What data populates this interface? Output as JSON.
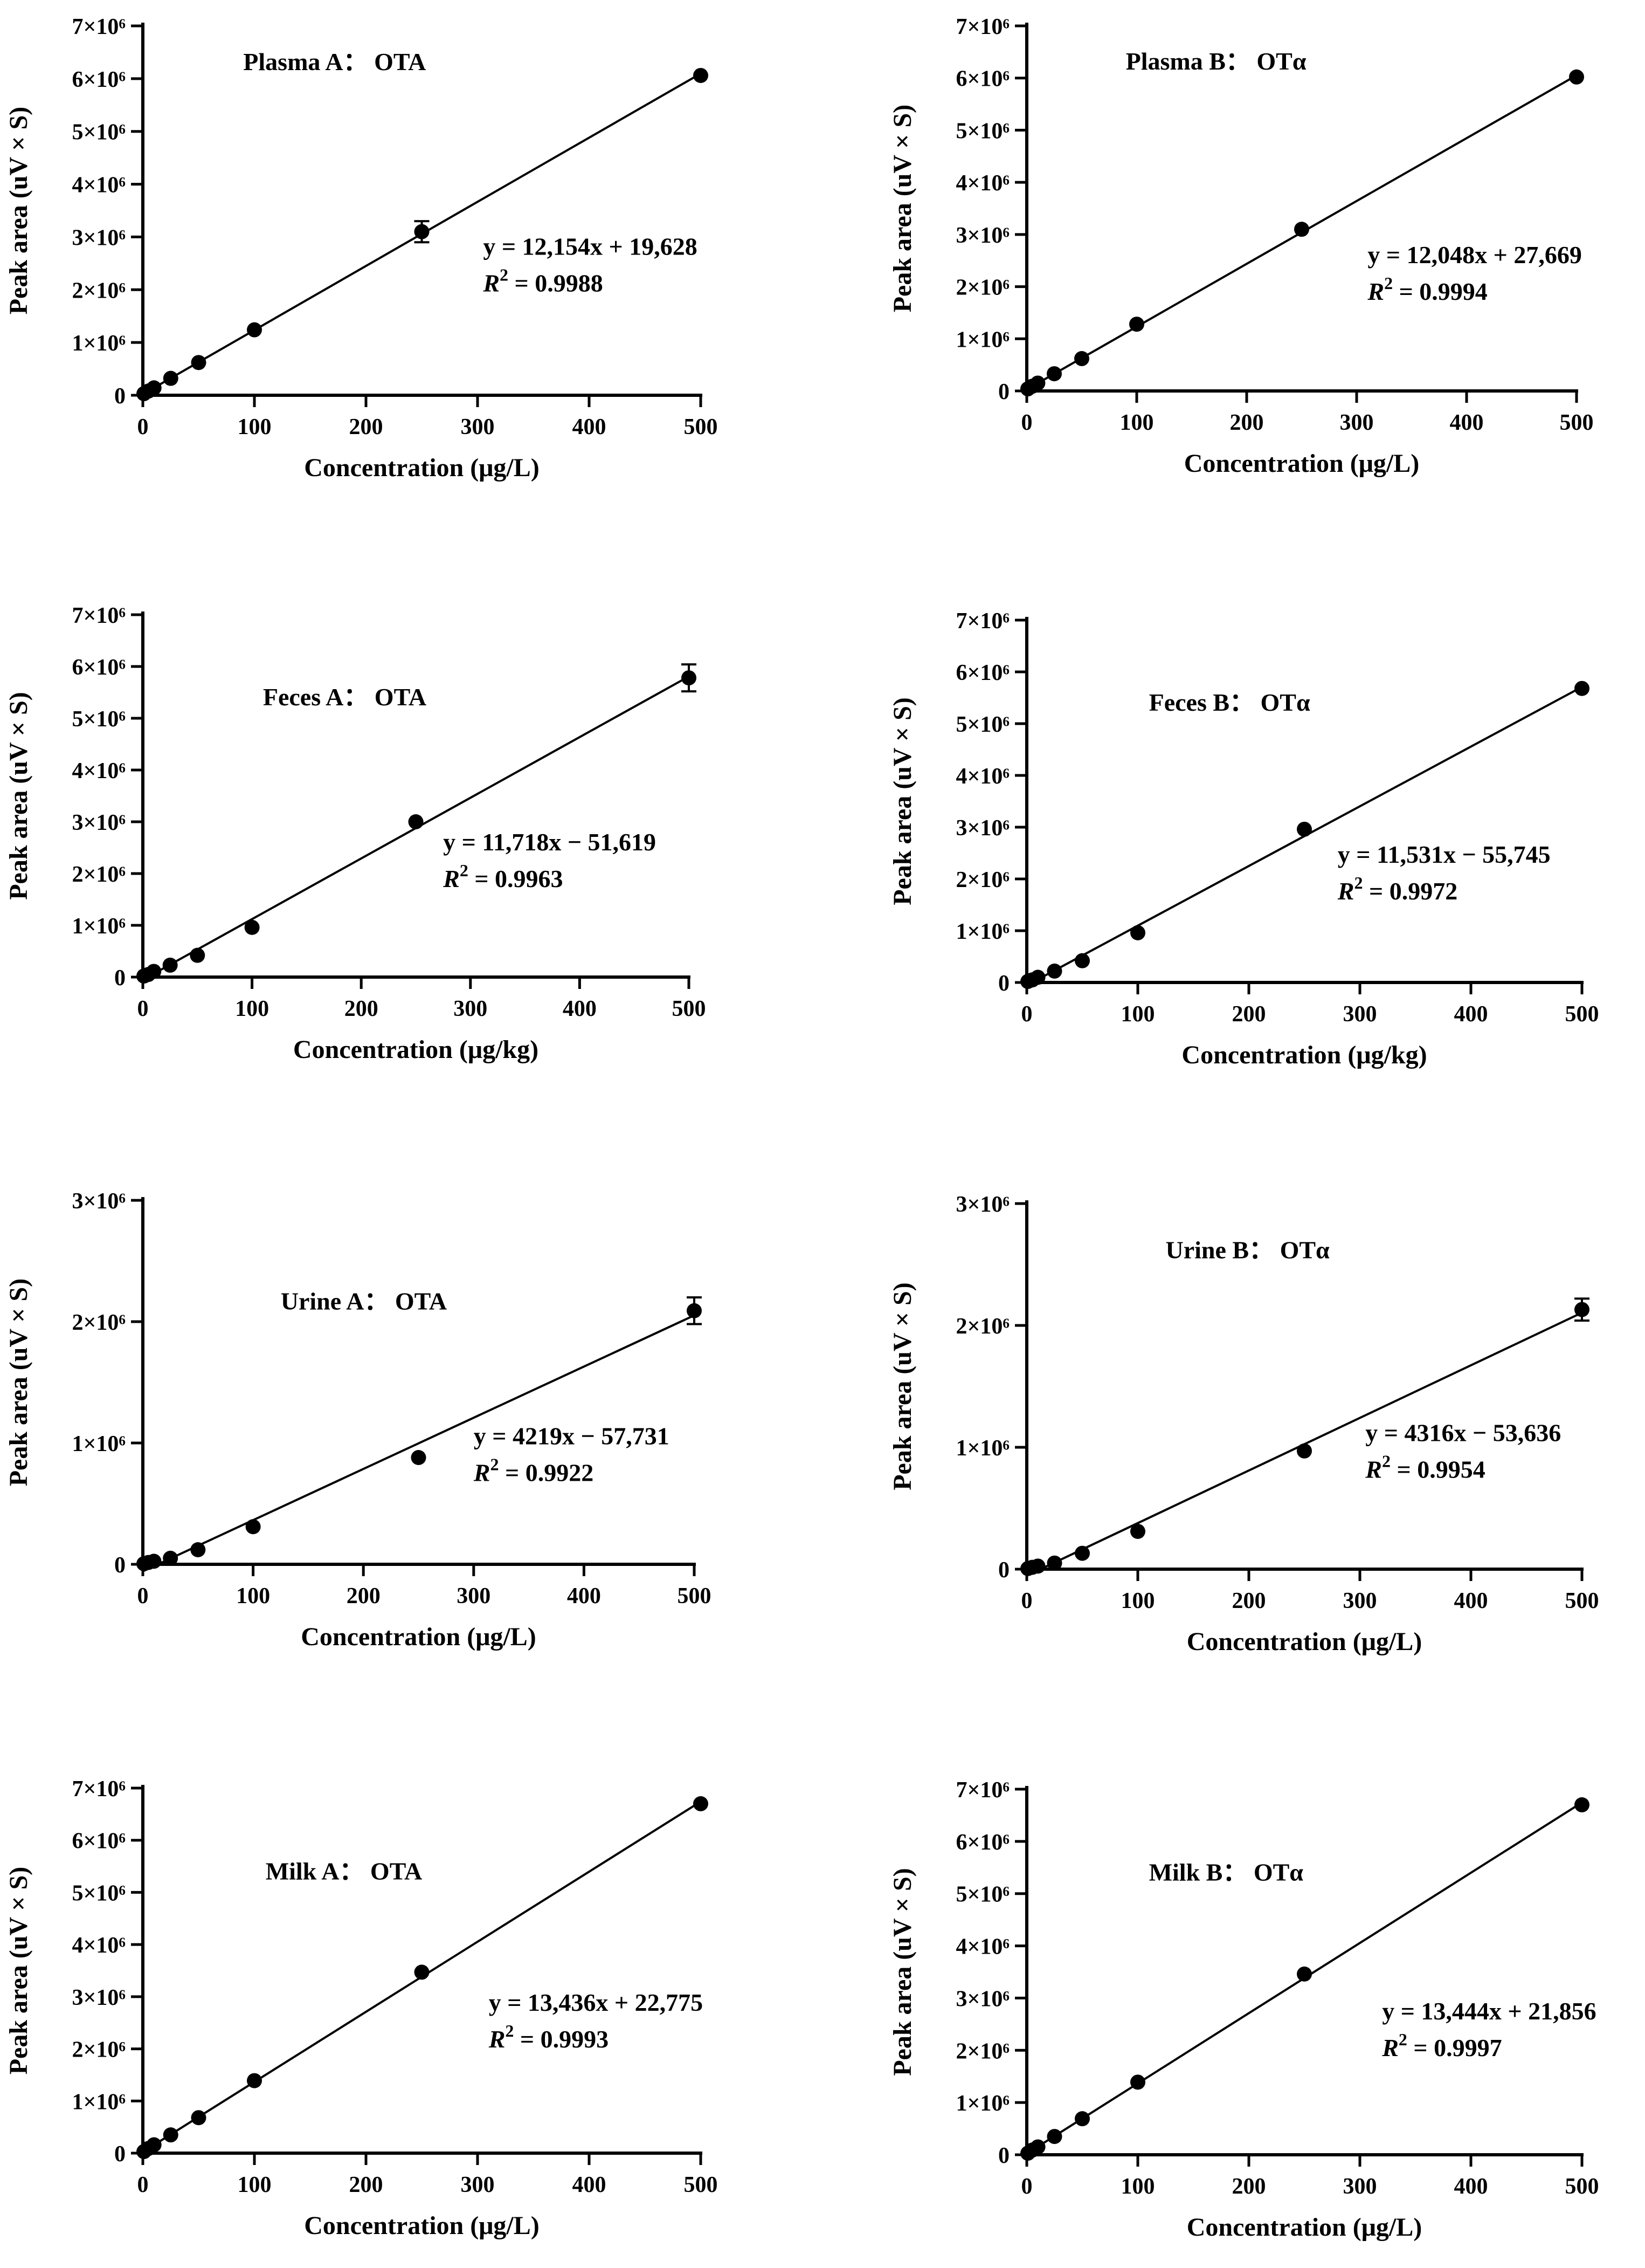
{
  "figure": {
    "axis_label_peak_area": "Peak area (uV × S)"
  },
  "chart_data": [
    {
      "id": "plasma-a",
      "type": "scatter",
      "title": "Plasma A： OTA",
      "xlabel": "Concentration (μg/L)",
      "ylabel": "Peak area (uV × S)",
      "xlim": [
        0,
        500
      ],
      "ylim": [
        0,
        7000000
      ],
      "x_ticks": [
        0,
        100,
        200,
        300,
        400,
        500
      ],
      "y_ticks": [
        0,
        1000000,
        2000000,
        3000000,
        4000000,
        5000000,
        6000000,
        7000000
      ],
      "y_tick_labels": [
        "0",
        "1×10⁶",
        "2×10⁶",
        "3×10⁶",
        "4×10⁶",
        "5×10⁶",
        "6×10⁶",
        "7×10⁶"
      ],
      "x": [
        1,
        5,
        10,
        25,
        50,
        100,
        250,
        500
      ],
      "y": [
        30000,
        80000,
        140000,
        320000,
        620000,
        1240000,
        3100000,
        6060000
      ],
      "error": [
        0,
        0,
        0,
        0,
        0,
        0,
        200000,
        0
      ],
      "fit": {
        "slope": 12154,
        "intercept": 19628
      },
      "equation": "y = 12,154x + 19,628",
      "r2_label": "R",
      "r2_sup": "2",
      "r2_value": " = 0.9988"
    },
    {
      "id": "plasma-b",
      "type": "scatter",
      "title": "Plasma B： OTα",
      "xlabel": "Concentration (μg/L)",
      "ylabel": "Peak area (uV × S)",
      "xlim": [
        0,
        500
      ],
      "ylim": [
        0,
        7000000
      ],
      "x_ticks": [
        0,
        100,
        200,
        300,
        400,
        500
      ],
      "y_ticks": [
        0,
        1000000,
        2000000,
        3000000,
        4000000,
        5000000,
        6000000,
        7000000
      ],
      "y_tick_labels": [
        "0",
        "1×10⁶",
        "2×10⁶",
        "3×10⁶",
        "4×10⁶",
        "5×10⁶",
        "6×10⁶",
        "7×10⁶"
      ],
      "x": [
        1,
        5,
        10,
        25,
        50,
        100,
        250,
        500
      ],
      "y": [
        40000,
        90000,
        150000,
        330000,
        620000,
        1280000,
        3100000,
        6020000
      ],
      "error": [
        0,
        0,
        0,
        0,
        0,
        0,
        0,
        0
      ],
      "fit": {
        "slope": 12048,
        "intercept": 27669
      },
      "equation": "y = 12,048x + 27,669",
      "r2_label": "R",
      "r2_sup": "2",
      "r2_value": " = 0.9994"
    },
    {
      "id": "feces-a",
      "type": "scatter",
      "title": "Feces A： OTA",
      "xlabel": "Concentration (μg/kg)",
      "ylabel": "Peak area (uV × S)",
      "xlim": [
        0,
        500
      ],
      "ylim": [
        0,
        7000000
      ],
      "x_ticks": [
        0,
        100,
        200,
        300,
        400,
        500
      ],
      "y_ticks": [
        0,
        1000000,
        2000000,
        3000000,
        4000000,
        5000000,
        6000000,
        7000000
      ],
      "y_tick_labels": [
        "0",
        "1×10⁶",
        "2×10⁶",
        "3×10⁶",
        "4×10⁶",
        "5×10⁶",
        "6×10⁶",
        "7×10⁶"
      ],
      "x": [
        1,
        5,
        10,
        25,
        50,
        100,
        250,
        500
      ],
      "y": [
        20000,
        50000,
        110000,
        230000,
        420000,
        960000,
        3000000,
        5780000
      ],
      "error": [
        0,
        0,
        0,
        0,
        0,
        0,
        0,
        260000
      ],
      "fit": {
        "slope": 11718,
        "intercept": -51619
      },
      "equation": "y = 11,718x − 51,619",
      "r2_label": "R",
      "r2_sup": "2",
      "r2_value": " = 0.9963"
    },
    {
      "id": "feces-b",
      "type": "scatter",
      "title": "Feces B： OTα",
      "xlabel": "Concentration (μg/kg)",
      "ylabel": "Peak area (uV × S)",
      "xlim": [
        0,
        500
      ],
      "ylim": [
        0,
        7000000
      ],
      "x_ticks": [
        0,
        100,
        200,
        300,
        400,
        500
      ],
      "y_ticks": [
        0,
        1000000,
        2000000,
        3000000,
        4000000,
        5000000,
        6000000,
        7000000
      ],
      "y_tick_labels": [
        "0",
        "1×10⁶",
        "2×10⁶",
        "3×10⁶",
        "4×10⁶",
        "5×10⁶",
        "6×10⁶",
        "7×10⁶"
      ],
      "x": [
        1,
        5,
        10,
        25,
        50,
        100,
        250,
        500
      ],
      "y": [
        20000,
        50000,
        100000,
        220000,
        420000,
        960000,
        2960000,
        5680000
      ],
      "error": [
        0,
        0,
        0,
        0,
        0,
        0,
        0,
        0
      ],
      "fit": {
        "slope": 11531,
        "intercept": -55745
      },
      "equation": "y = 11,531x − 55,745",
      "r2_label": "R",
      "r2_sup": "2",
      "r2_value": " = 0.9972"
    },
    {
      "id": "urine-a",
      "type": "scatter",
      "title": "Urine A： OTA",
      "xlabel": "Concentration (μg/L)",
      "ylabel": "Peak area (uV × S)",
      "xlim": [
        0,
        500
      ],
      "ylim": [
        0,
        3000000
      ],
      "x_ticks": [
        0,
        100,
        200,
        300,
        400,
        500
      ],
      "y_ticks": [
        0,
        1000000,
        2000000,
        3000000
      ],
      "y_tick_labels": [
        "0",
        "1×10⁶",
        "2×10⁶",
        "3×10⁶"
      ],
      "x": [
        1,
        5,
        10,
        25,
        50,
        100,
        250,
        500
      ],
      "y": [
        5000,
        15000,
        25000,
        50000,
        120000,
        310000,
        880000,
        2090000
      ],
      "error": [
        0,
        0,
        0,
        0,
        0,
        0,
        0,
        110000
      ],
      "fit": {
        "slope": 4219,
        "intercept": -57731
      },
      "equation": "y = 4219x − 57,731",
      "r2_label": "R",
      "r2_sup": "2",
      "r2_value": " = 0.9922"
    },
    {
      "id": "urine-b",
      "type": "scatter",
      "title": "Urine B： OTα",
      "xlabel": "Concentration (μg/L)",
      "ylabel": "Peak area (uV × S)",
      "xlim": [
        0,
        500
      ],
      "ylim": [
        0,
        3000000
      ],
      "x_ticks": [
        0,
        100,
        200,
        300,
        400,
        500
      ],
      "y_ticks": [
        0,
        1000000,
        2000000,
        3000000
      ],
      "y_tick_labels": [
        "0",
        "1×10⁶",
        "2×10⁶",
        "3×10⁶"
      ],
      "x": [
        1,
        5,
        10,
        25,
        50,
        100,
        250,
        500
      ],
      "y": [
        5000,
        15000,
        25000,
        50000,
        130000,
        310000,
        970000,
        2130000
      ],
      "error": [
        0,
        0,
        0,
        0,
        0,
        0,
        0,
        90000
      ],
      "fit": {
        "slope": 4316,
        "intercept": -53636
      },
      "equation": "y = 4316x − 53,636",
      "r2_label": "R",
      "r2_sup": "2",
      "r2_value": " = 0.9954"
    },
    {
      "id": "milk-a",
      "type": "scatter",
      "title": "Milk A： OTA",
      "xlabel": "Concentration (μg/L)",
      "ylabel": "Peak area (uV × S)",
      "xlim": [
        0,
        500
      ],
      "ylim": [
        0,
        7000000
      ],
      "x_ticks": [
        0,
        100,
        200,
        300,
        400,
        500
      ],
      "y_ticks": [
        0,
        1000000,
        2000000,
        3000000,
        4000000,
        5000000,
        6000000,
        7000000
      ],
      "y_tick_labels": [
        "0",
        "1×10⁶",
        "2×10⁶",
        "3×10⁶",
        "4×10⁶",
        "5×10⁶",
        "6×10⁶",
        "7×10⁶"
      ],
      "x": [
        1,
        5,
        10,
        25,
        50,
        100,
        250,
        500
      ],
      "y": [
        30000,
        90000,
        160000,
        350000,
        680000,
        1390000,
        3470000,
        6700000
      ],
      "error": [
        0,
        0,
        0,
        0,
        0,
        0,
        0,
        0
      ],
      "fit": {
        "slope": 13436,
        "intercept": 22775
      },
      "equation": "y = 13,436x + 22,775",
      "r2_label": "R",
      "r2_sup": "2",
      "r2_value": " = 0.9993"
    },
    {
      "id": "milk-b",
      "type": "scatter",
      "title": "Milk B： OTα",
      "xlabel": "Concentration (μg/L)",
      "ylabel": "Peak area (uV × S)",
      "xlim": [
        0,
        500
      ],
      "ylim": [
        0,
        7000000
      ],
      "x_ticks": [
        0,
        100,
        200,
        300,
        400,
        500
      ],
      "y_ticks": [
        0,
        1000000,
        2000000,
        3000000,
        4000000,
        5000000,
        6000000,
        7000000
      ],
      "y_tick_labels": [
        "0",
        "1×10⁶",
        "2×10⁶",
        "3×10⁶",
        "4×10⁶",
        "5×10⁶",
        "6×10⁶",
        "7×10⁶"
      ],
      "x": [
        1,
        5,
        10,
        25,
        50,
        100,
        250,
        500
      ],
      "y": [
        30000,
        90000,
        150000,
        350000,
        690000,
        1390000,
        3460000,
        6700000
      ],
      "error": [
        0,
        0,
        0,
        0,
        0,
        0,
        0,
        0
      ],
      "fit": {
        "slope": 13444,
        "intercept": 21856
      },
      "equation": "y = 13,444x + 21,856",
      "r2_label": "R",
      "r2_sup": "2",
      "r2_value": " = 0.9997"
    }
  ]
}
